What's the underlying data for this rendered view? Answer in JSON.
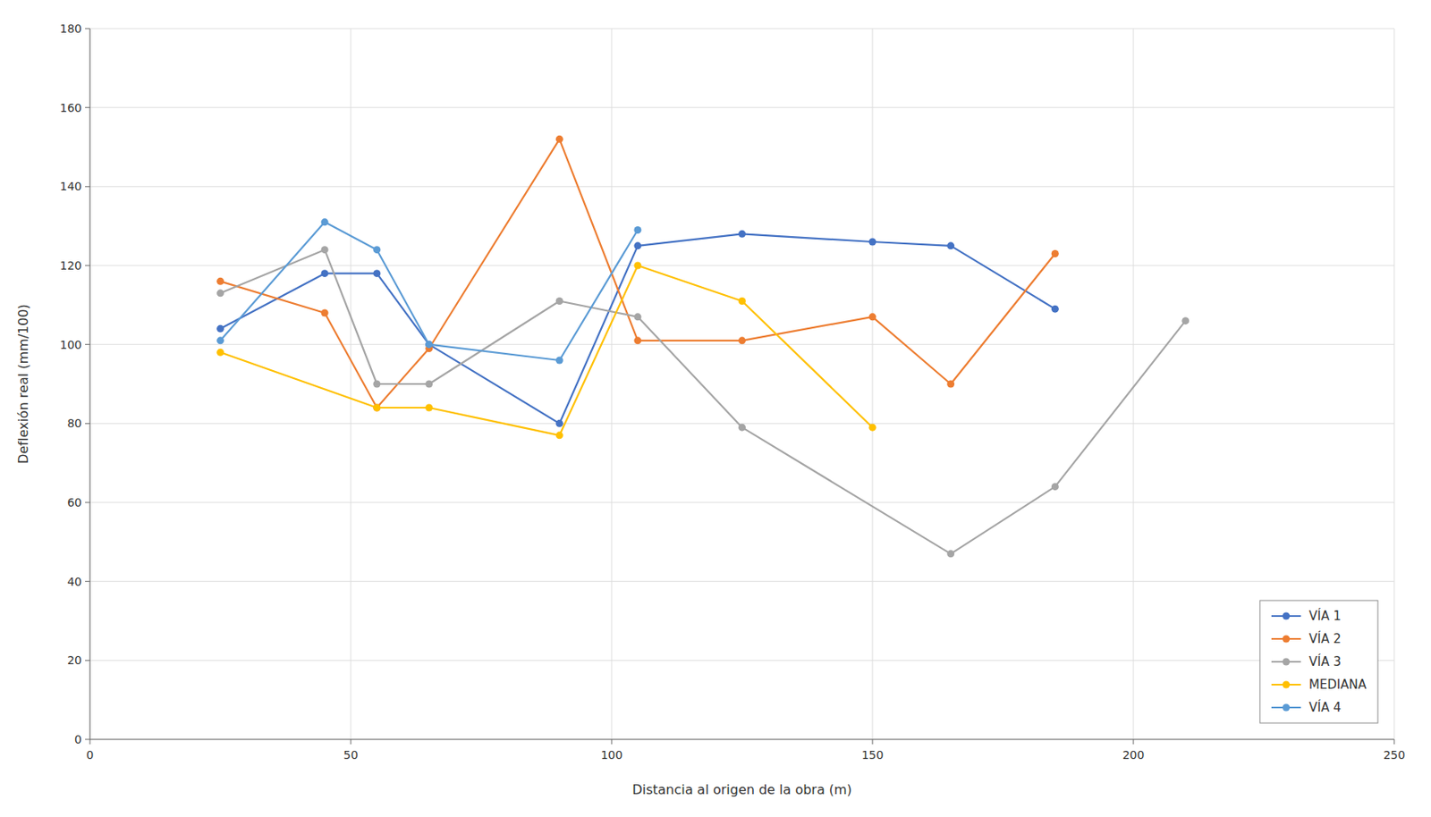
{
  "chart_data": {
    "type": "line",
    "xlabel": "Distancia al origen de la obra (m)",
    "ylabel": "Deflexión real (mm/100)",
    "xlim": [
      0,
      250
    ],
    "ylim": [
      0,
      180
    ],
    "xticks": [
      0,
      50,
      100,
      150,
      200,
      250
    ],
    "yticks": [
      0,
      20,
      40,
      60,
      80,
      100,
      120,
      140,
      160,
      180
    ],
    "grid": true,
    "legend": "lower right",
    "series": [
      {
        "name": "VÍA 1",
        "color": "#4472C4",
        "marker": "circle",
        "x": [
          25,
          45,
          55,
          65,
          90,
          105,
          125,
          150,
          165,
          185
        ],
        "values": [
          104,
          118,
          118,
          100,
          80,
          125,
          128,
          126,
          125,
          109
        ]
      },
      {
        "name": "VÍA 2",
        "color": "#ED7D31",
        "marker": "circle",
        "x": [
          25,
          45,
          55,
          65,
          90,
          105,
          125,
          150,
          165,
          185
        ],
        "values": [
          116,
          108,
          84,
          99,
          152,
          101,
          101,
          107,
          90,
          123
        ]
      },
      {
        "name": "VÍA 3",
        "color": "#A5A5A5",
        "marker": "circle",
        "x": [
          25,
          45,
          55,
          65,
          90,
          105,
          125,
          165,
          185,
          210
        ],
        "values": [
          113,
          124,
          90,
          90,
          111,
          107,
          79,
          47,
          64,
          106
        ]
      },
      {
        "name": "MEDIANA",
        "color": "#FFC000",
        "marker": "circle",
        "x": [
          25,
          55,
          65,
          90,
          105,
          125,
          150
        ],
        "values": [
          98,
          84,
          84,
          77,
          120,
          111,
          79
        ]
      },
      {
        "name": "VÍA 4",
        "color": "#5B9BD5",
        "marker": "circle",
        "x": [
          25,
          45,
          55,
          65,
          90,
          105
        ],
        "values": [
          101,
          131,
          124,
          100,
          96,
          129
        ]
      }
    ]
  }
}
